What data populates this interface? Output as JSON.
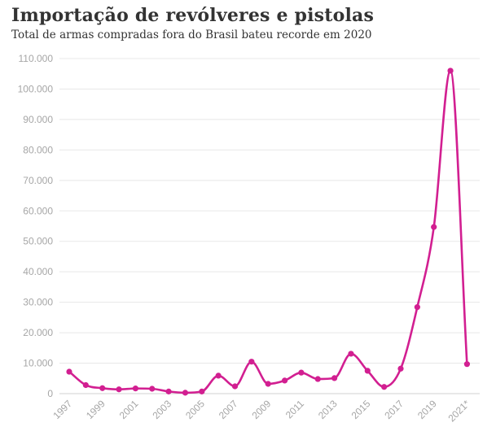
{
  "header": {
    "title": "Importação de revólveres e pistolas",
    "subtitle": "Total de armas compradas fora do Brasil bateu recorde em 2020"
  },
  "colors": {
    "series": "#d21f91",
    "grid": "#e8e8e8",
    "axis_text": "#a6a6a6",
    "title": "#333333"
  },
  "chart_data": {
    "type": "line",
    "title": "Importação de revólveres e pistolas",
    "subtitle": "Total de armas compradas fora do Brasil bateu recorde em 2020",
    "xlabel": "",
    "ylabel": "",
    "x": [
      "1997",
      "1998",
      "1999",
      "2000",
      "2001",
      "2002",
      "2003",
      "2004",
      "2005",
      "2006",
      "2007",
      "2008",
      "2009",
      "2010",
      "2011",
      "2012",
      "2013",
      "2014",
      "2015",
      "2016",
      "2017",
      "2018",
      "2019",
      "2020",
      "2021*"
    ],
    "series": [
      {
        "values": [
          7200,
          2800,
          1800,
          1400,
          1700,
          1600,
          700,
          300,
          700,
          5900,
          2400,
          10500,
          3200,
          4300,
          6900,
          4800,
          5100,
          13100,
          7500,
          2200,
          8200,
          28400,
          54700,
          106000,
          9700
        ]
      }
    ],
    "x_tick_labels": [
      "1997",
      "1999",
      "2001",
      "2003",
      "2005",
      "2007",
      "2009",
      "2011",
      "2013",
      "2015",
      "2017",
      "2019",
      "2021*"
    ],
    "y_tick_values": [
      0,
      10000,
      20000,
      30000,
      40000,
      50000,
      60000,
      70000,
      80000,
      90000,
      100000,
      110000
    ],
    "y_tick_labels": [
      "0",
      "10.000",
      "20.000",
      "30.000",
      "40.000",
      "50.000",
      "60.000",
      "70.000",
      "80.000",
      "90.000",
      "100.000",
      "110.000"
    ],
    "ylim": [
      0,
      110000
    ],
    "grid": "horizontal",
    "legend": "none"
  }
}
